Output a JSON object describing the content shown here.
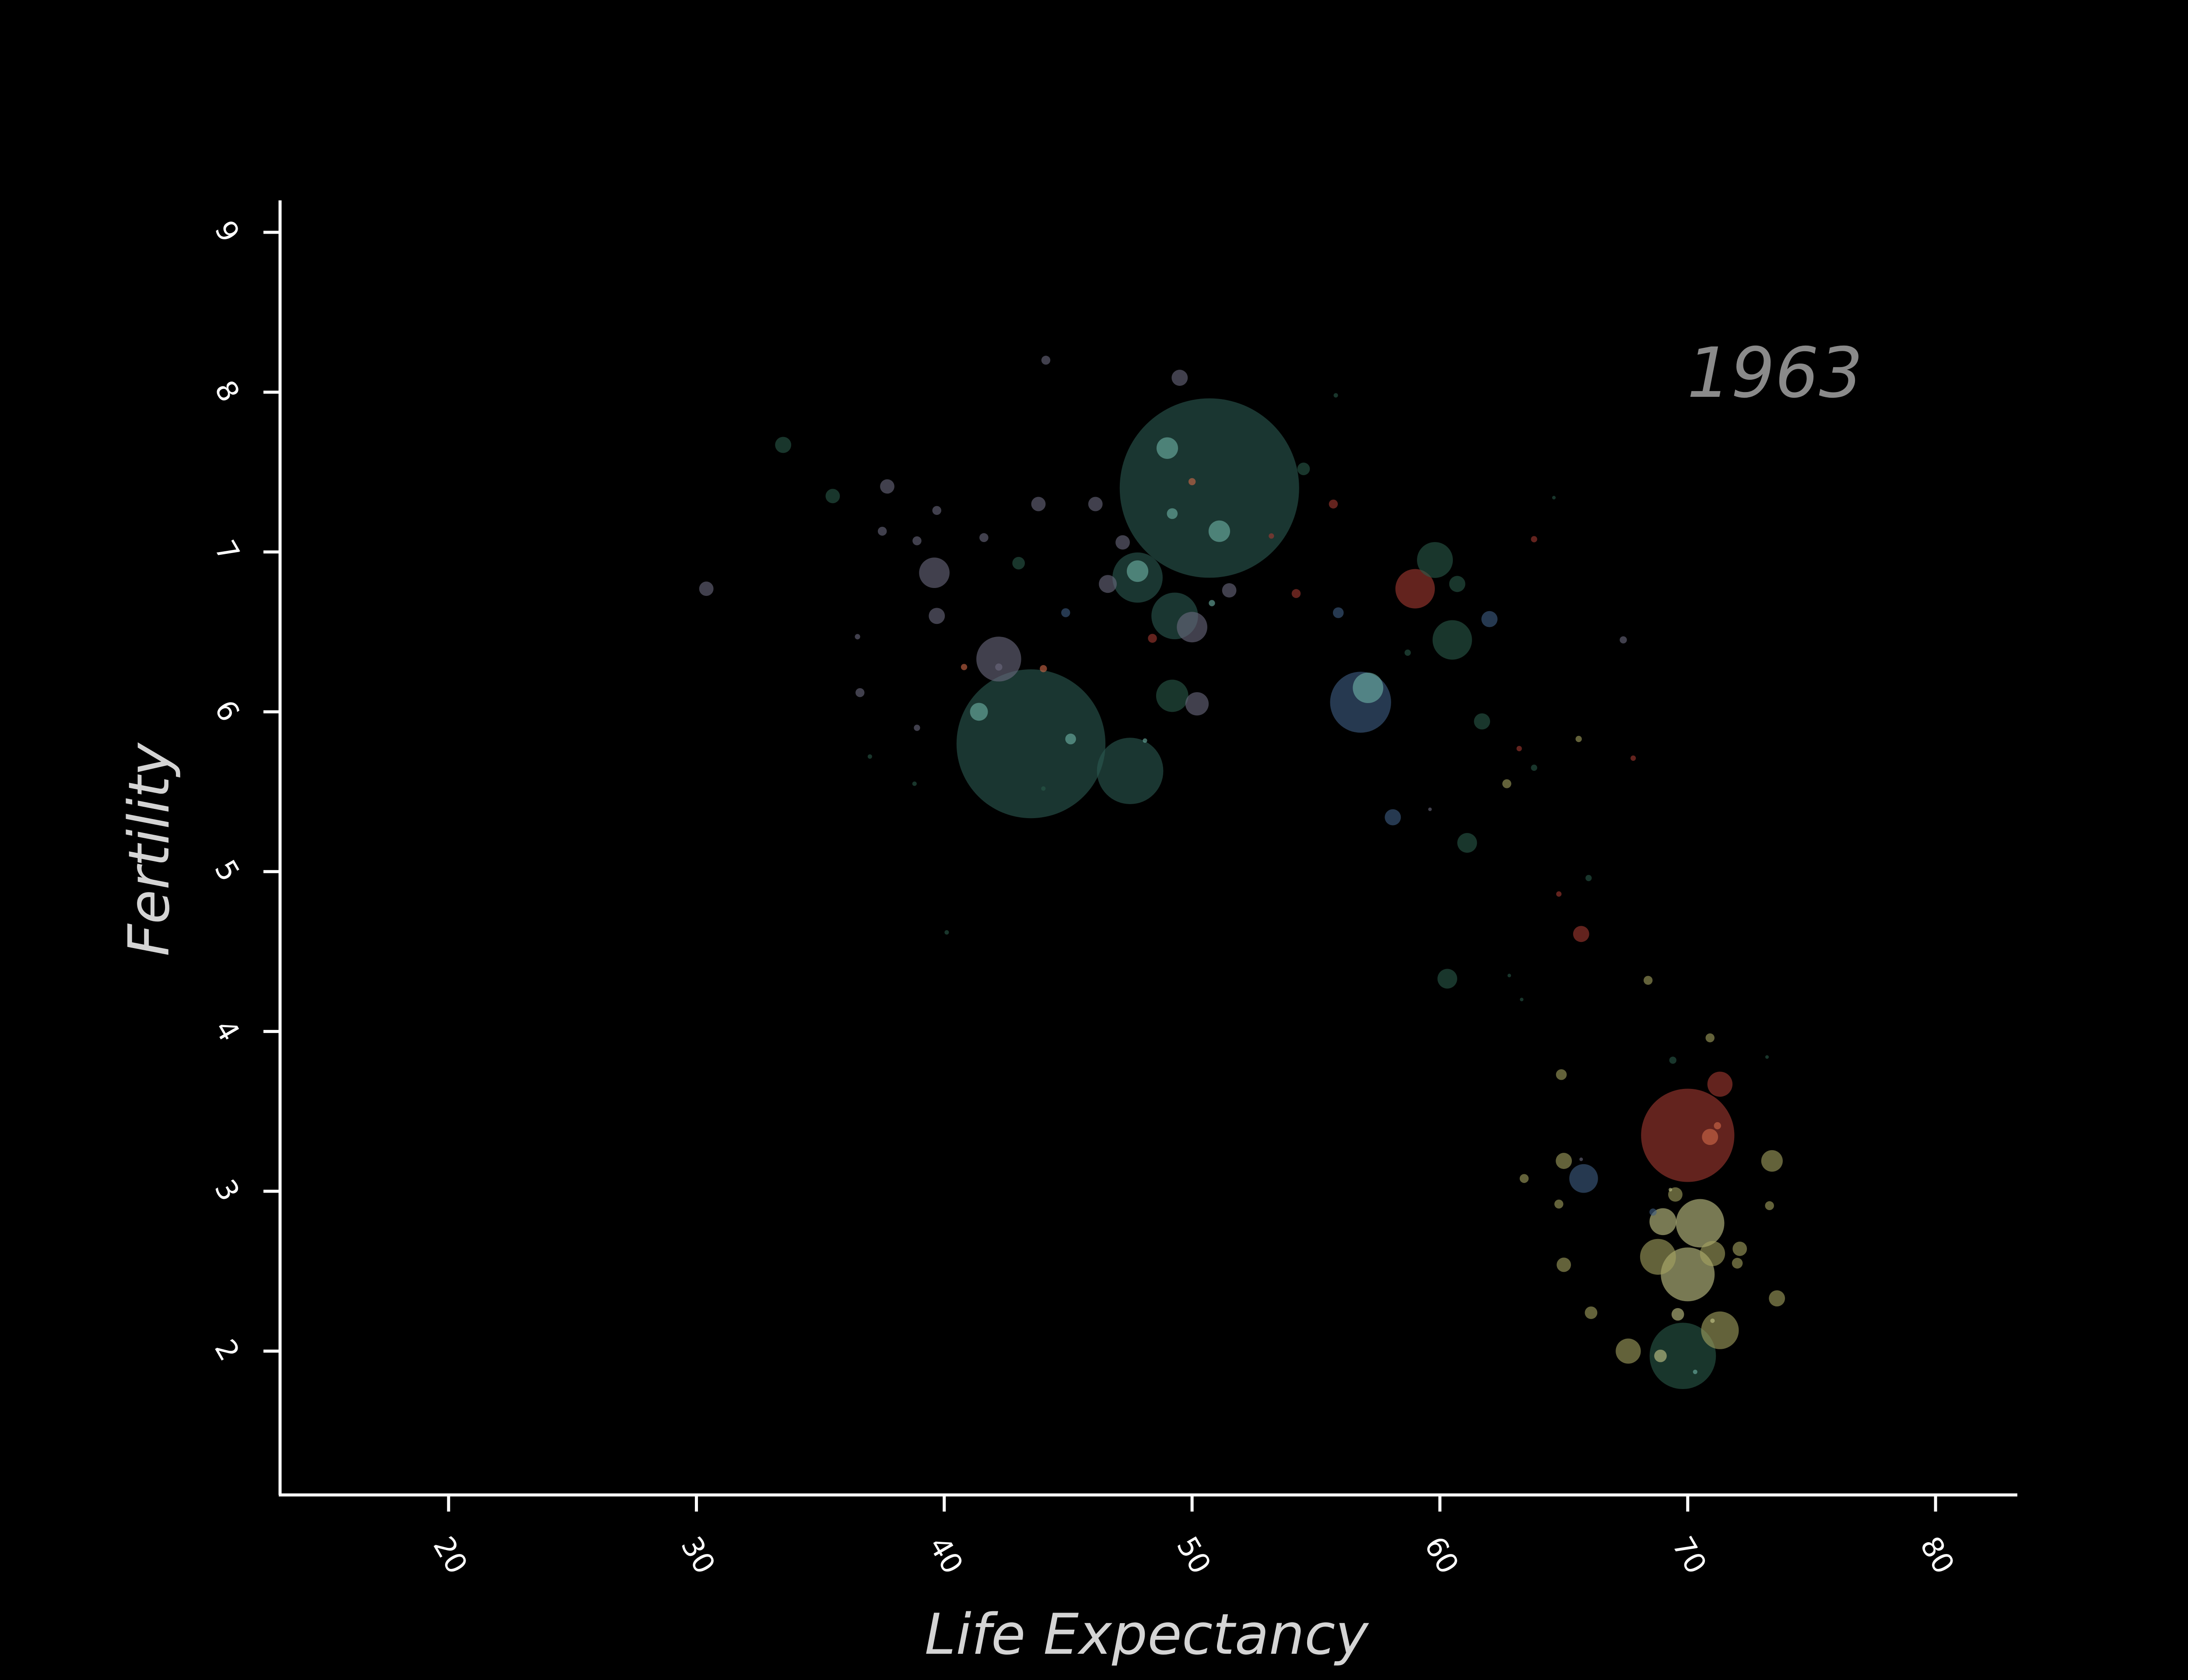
{
  "chart_data": {
    "type": "scatter",
    "title": "",
    "xlabel": "Life Expectancy",
    "ylabel": "Fertility",
    "annotation": "1963",
    "xlim": [
      13.2,
      83.3
    ],
    "ylim": [
      1.1,
      9.2
    ],
    "xticks": [
      "20",
      "30",
      "40",
      "50",
      "60",
      "70",
      "80"
    ],
    "yticks": [
      "2",
      "3",
      "4",
      "5",
      "6",
      "7",
      "8",
      "9"
    ],
    "grid": false,
    "legend": "none",
    "region_colors": {
      "sub-saharan-africa": "#2a5a4a",
      "south-asia": "#2c5a52",
      "east-asia-pacific": "#3f5f86",
      "middle-east": "#6c6a80",
      "europe": "#a5a461",
      "latin-america": "#a53a32",
      "north-america": "#c8c98a",
      "accent": "#6fb5a8"
    },
    "points": [
      {
        "x": 50.7,
        "y": 7.4,
        "r": 1.0,
        "color": "#2c5a52"
      },
      {
        "x": 43.5,
        "y": 5.8,
        "r": 0.83,
        "color": "#2c5a52"
      },
      {
        "x": 70.0,
        "y": 3.35,
        "r": 0.52,
        "color": "#a53a32"
      },
      {
        "x": 47.5,
        "y": 5.63,
        "r": 0.37,
        "color": "#2c5a52"
      },
      {
        "x": 56.8,
        "y": 6.06,
        "r": 0.34,
        "color": "#3f5f86"
      },
      {
        "x": 70.0,
        "y": 2.48,
        "r": 0.3,
        "color": "#c8c98a"
      },
      {
        "x": 69.8,
        "y": 1.97,
        "r": 0.37,
        "color": "#2a5a4a"
      },
      {
        "x": 49.3,
        "y": 6.6,
        "r": 0.26,
        "color": "#2c5a52"
      },
      {
        "x": 47.8,
        "y": 6.84,
        "r": 0.28,
        "color": "#2c5a52"
      },
      {
        "x": 70.5,
        "y": 2.8,
        "r": 0.27,
        "color": "#c8c98a"
      },
      {
        "x": 42.2,
        "y": 6.33,
        "r": 0.25,
        "color": "#6c6a80"
      },
      {
        "x": 60.5,
        "y": 6.45,
        "r": 0.22,
        "color": "#2a5a4a"
      },
      {
        "x": 59.8,
        "y": 6.95,
        "r": 0.2,
        "color": "#2a5a4a"
      },
      {
        "x": 59.0,
        "y": 6.77,
        "r": 0.22,
        "color": "#a53a32"
      },
      {
        "x": 68.8,
        "y": 2.59,
        "r": 0.2,
        "color": "#a5a461"
      },
      {
        "x": 71.3,
        "y": 2.13,
        "r": 0.21,
        "color": "#a5a461"
      },
      {
        "x": 49.2,
        "y": 6.1,
        "r": 0.18,
        "color": "#2a5a4a"
      },
      {
        "x": 57.1,
        "y": 6.15,
        "r": 0.17,
        "color": "#6fb5a8"
      },
      {
        "x": 39.6,
        "y": 6.87,
        "r": 0.17,
        "color": "#6c6a80"
      },
      {
        "x": 50.0,
        "y": 6.53,
        "r": 0.17,
        "color": "#6c6a80"
      },
      {
        "x": 65.8,
        "y": 3.08,
        "r": 0.16,
        "color": "#3f5f86"
      },
      {
        "x": 69.0,
        "y": 2.81,
        "r": 0.15,
        "color": "#c8c98a"
      },
      {
        "x": 71.0,
        "y": 2.61,
        "r": 0.14,
        "color": "#a5a461"
      },
      {
        "x": 67.6,
        "y": 2.0,
        "r": 0.14,
        "color": "#a5a461"
      },
      {
        "x": 71.3,
        "y": 3.67,
        "r": 0.14,
        "color": "#a53a32"
      },
      {
        "x": 50.2,
        "y": 6.05,
        "r": 0.13,
        "color": "#6c6a80"
      },
      {
        "x": 49.0,
        "y": 7.65,
        "r": 0.12,
        "color": "#6fb5a8"
      },
      {
        "x": 51.1,
        "y": 7.13,
        "r": 0.12,
        "color": "#6fb5a8"
      },
      {
        "x": 47.8,
        "y": 6.88,
        "r": 0.12,
        "color": "#6fb5a8"
      },
      {
        "x": 73.4,
        "y": 3.19,
        "r": 0.12,
        "color": "#a5a461"
      },
      {
        "x": 61.1,
        "y": 5.18,
        "r": 0.11,
        "color": "#2a5a4a"
      },
      {
        "x": 60.3,
        "y": 4.33,
        "r": 0.11,
        "color": "#2a5a4a"
      },
      {
        "x": 41.4,
        "y": 6.0,
        "r": 0.1,
        "color": "#6fb5a8"
      },
      {
        "x": 46.6,
        "y": 6.8,
        "r": 0.1,
        "color": "#6c6a80"
      },
      {
        "x": 73.6,
        "y": 2.33,
        "r": 0.09,
        "color": "#a5a461"
      },
      {
        "x": 33.5,
        "y": 7.67,
        "r": 0.09,
        "color": "#2a5a4a"
      },
      {
        "x": 49.5,
        "y": 8.09,
        "r": 0.09,
        "color": "#6c6a80"
      },
      {
        "x": 61.7,
        "y": 5.94,
        "r": 0.09,
        "color": "#2a5a4a"
      },
      {
        "x": 39.7,
        "y": 6.6,
        "r": 0.09,
        "color": "#6c6a80"
      },
      {
        "x": 65.7,
        "y": 4.61,
        "r": 0.09,
        "color": "#a53a32"
      },
      {
        "x": 62.0,
        "y": 6.58,
        "r": 0.09,
        "color": "#3f5f86"
      },
      {
        "x": 60.7,
        "y": 6.8,
        "r": 0.09,
        "color": "#2a5a4a"
      },
      {
        "x": 65.0,
        "y": 3.19,
        "r": 0.09,
        "color": "#a5a461"
      },
      {
        "x": 58.1,
        "y": 5.34,
        "r": 0.09,
        "color": "#3f5f86"
      },
      {
        "x": 70.9,
        "y": 3.34,
        "r": 0.09,
        "color": "#d46a4a"
      },
      {
        "x": 69.5,
        "y": 2.98,
        "r": 0.08,
        "color": "#a5a461"
      },
      {
        "x": 65.0,
        "y": 2.54,
        "r": 0.08,
        "color": "#a5a461"
      },
      {
        "x": 30.4,
        "y": 6.77,
        "r": 0.08,
        "color": "#6c6a80"
      },
      {
        "x": 72.1,
        "y": 2.64,
        "r": 0.08,
        "color": "#a5a461"
      },
      {
        "x": 35.5,
        "y": 7.35,
        "r": 0.08,
        "color": "#2a5a4a"
      },
      {
        "x": 37.7,
        "y": 7.41,
        "r": 0.08,
        "color": "#6c6a80"
      },
      {
        "x": 46.1,
        "y": 7.3,
        "r": 0.08,
        "color": "#6c6a80"
      },
      {
        "x": 43.8,
        "y": 7.3,
        "r": 0.08,
        "color": "#6c6a80"
      },
      {
        "x": 47.2,
        "y": 7.06,
        "r": 0.08,
        "color": "#6c6a80"
      },
      {
        "x": 51.5,
        "y": 6.76,
        "r": 0.08,
        "color": "#6c6a80"
      },
      {
        "x": 54.5,
        "y": 7.52,
        "r": 0.07,
        "color": "#2a5a4a"
      },
      {
        "x": 43.0,
        "y": 6.93,
        "r": 0.07,
        "color": "#2a5a4a"
      },
      {
        "x": 66.1,
        "y": 2.24,
        "r": 0.07,
        "color": "#a5a461"
      },
      {
        "x": 68.9,
        "y": 1.97,
        "r": 0.07,
        "color": "#c8c98a"
      },
      {
        "x": 69.6,
        "y": 2.23,
        "r": 0.07,
        "color": "#c8c98a"
      },
      {
        "x": 64.9,
        "y": 3.73,
        "r": 0.06,
        "color": "#a5a461"
      },
      {
        "x": 70.9,
        "y": 3.96,
        "r": 0.05,
        "color": "#a5a461"
      },
      {
        "x": 72.0,
        "y": 2.55,
        "r": 0.06,
        "color": "#a5a461"
      },
      {
        "x": 73.3,
        "y": 2.91,
        "r": 0.05,
        "color": "#a5a461"
      },
      {
        "x": 62.7,
        "y": 5.55,
        "r": 0.05,
        "color": "#a5a461"
      },
      {
        "x": 68.4,
        "y": 4.32,
        "r": 0.05,
        "color": "#a5a461"
      },
      {
        "x": 64.8,
        "y": 2.92,
        "r": 0.05,
        "color": "#a5a461"
      },
      {
        "x": 63.4,
        "y": 3.08,
        "r": 0.05,
        "color": "#a5a461"
      },
      {
        "x": 55.9,
        "y": 6.62,
        "r": 0.06,
        "color": "#3f5f86"
      },
      {
        "x": 49.2,
        "y": 7.24,
        "r": 0.06,
        "color": "#6fb5a8"
      },
      {
        "x": 45.1,
        "y": 5.83,
        "r": 0.06,
        "color": "#6fb5a8"
      },
      {
        "x": 44.1,
        "y": 8.2,
        "r": 0.05,
        "color": "#6c6a80"
      },
      {
        "x": 41.6,
        "y": 7.09,
        "r": 0.05,
        "color": "#6c6a80"
      },
      {
        "x": 38.9,
        "y": 7.07,
        "r": 0.05,
        "color": "#6c6a80"
      },
      {
        "x": 37.5,
        "y": 7.13,
        "r": 0.05,
        "color": "#6c6a80"
      },
      {
        "x": 36.6,
        "y": 6.12,
        "r": 0.05,
        "color": "#6c6a80"
      },
      {
        "x": 39.7,
        "y": 7.26,
        "r": 0.05,
        "color": "#6c6a80"
      },
      {
        "x": 44.9,
        "y": 6.62,
        "r": 0.05,
        "color": "#3f5f86"
      },
      {
        "x": 42.2,
        "y": 6.28,
        "r": 0.04,
        "color": "#6c6a80"
      },
      {
        "x": 54.2,
        "y": 6.74,
        "r": 0.05,
        "color": "#a53a32"
      },
      {
        "x": 55.7,
        "y": 7.3,
        "r": 0.05,
        "color": "#a53a32"
      },
      {
        "x": 48.4,
        "y": 6.46,
        "r": 0.05,
        "color": "#a53a32"
      },
      {
        "x": 50.0,
        "y": 7.44,
        "r": 0.04,
        "color": "#d46a4a"
      },
      {
        "x": 44.0,
        "y": 6.27,
        "r": 0.04,
        "color": "#d46a4a"
      },
      {
        "x": 40.8,
        "y": 6.28,
        "r": 0.035,
        "color": "#d46a4a"
      },
      {
        "x": 67.4,
        "y": 6.45,
        "r": 0.04,
        "color": "#6c6a80"
      },
      {
        "x": 63.8,
        "y": 7.08,
        "r": 0.035,
        "color": "#a53a32"
      },
      {
        "x": 71.2,
        "y": 3.41,
        "r": 0.04,
        "color": "#d46a4a"
      },
      {
        "x": 69.4,
        "y": 3.82,
        "r": 0.04,
        "color": "#2a5a4a"
      },
      {
        "x": 68.6,
        "y": 2.87,
        "r": 0.04,
        "color": "#3f5f86"
      },
      {
        "x": 65.6,
        "y": 5.83,
        "r": 0.035,
        "color": "#a5a461"
      },
      {
        "x": 66.0,
        "y": 4.96,
        "r": 0.035,
        "color": "#2a5a4a"
      },
      {
        "x": 63.8,
        "y": 5.65,
        "r": 0.035,
        "color": "#2a5a4a"
      },
      {
        "x": 58.7,
        "y": 6.37,
        "r": 0.035,
        "color": "#2a5a4a"
      },
      {
        "x": 67.8,
        "y": 5.71,
        "r": 0.03,
        "color": "#a53a32"
      },
      {
        "x": 63.2,
        "y": 5.77,
        "r": 0.03,
        "color": "#a53a32"
      },
      {
        "x": 64.8,
        "y": 4.86,
        "r": 0.03,
        "color": "#a53a32"
      },
      {
        "x": 53.2,
        "y": 7.1,
        "r": 0.03,
        "color": "#a53a32"
      },
      {
        "x": 50.8,
        "y": 6.68,
        "r": 0.035,
        "color": "#6fb5a8"
      },
      {
        "x": 38.9,
        "y": 5.9,
        "r": 0.035,
        "color": "#6c6a80"
      },
      {
        "x": 36.5,
        "y": 6.47,
        "r": 0.03,
        "color": "#6c6a80"
      },
      {
        "x": 40.1,
        "y": 4.62,
        "r": 0.025,
        "color": "#2a5a4a"
      },
      {
        "x": 38.8,
        "y": 5.55,
        "r": 0.025,
        "color": "#2a5a4a"
      },
      {
        "x": 37.0,
        "y": 5.72,
        "r": 0.025,
        "color": "#2a5a4a"
      },
      {
        "x": 44.0,
        "y": 5.52,
        "r": 0.025,
        "color": "#2a5a4a"
      },
      {
        "x": 48.1,
        "y": 5.82,
        "r": 0.025,
        "color": "#6fb5a8"
      },
      {
        "x": 55.8,
        "y": 7.98,
        "r": 0.025,
        "color": "#2a5a4a"
      },
      {
        "x": 64.6,
        "y": 7.34,
        "r": 0.02,
        "color": "#2a5a4a"
      },
      {
        "x": 59.6,
        "y": 5.39,
        "r": 0.02,
        "color": "#6c6a80"
      },
      {
        "x": 73.2,
        "y": 3.84,
        "r": 0.02,
        "color": "#2a5a4a"
      },
      {
        "x": 63.3,
        "y": 4.2,
        "r": 0.02,
        "color": "#2a5a4a"
      },
      {
        "x": 62.8,
        "y": 4.35,
        "r": 0.02,
        "color": "#2a5a4a"
      },
      {
        "x": 65.7,
        "y": 3.2,
        "r": 0.02,
        "color": "#6c6a80"
      },
      {
        "x": 69.3,
        "y": 3.01,
        "r": 0.02,
        "color": "#c8c98a"
      },
      {
        "x": 70.3,
        "y": 1.87,
        "r": 0.025,
        "color": "#6fb5a8"
      },
      {
        "x": 71.0,
        "y": 2.19,
        "r": 0.025,
        "color": "#c8c98a"
      }
    ]
  }
}
